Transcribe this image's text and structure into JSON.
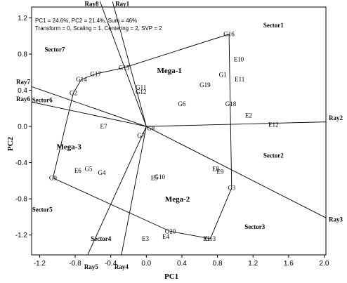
{
  "chart_data": {
    "type": "scatter",
    "title": "",
    "info_lines": [
      "PC1 = 24.6%, PC2 = 21.4%, Sum = 46%",
      "Transform = 0, Scaling = 1, Centering = 2, SVP = 2"
    ],
    "xlabel": "PC1",
    "ylabel": "PC2",
    "xlim": [
      -1.29,
      2.02
    ],
    "ylim": [
      -1.42,
      1.32
    ],
    "xticks": [
      -1.2,
      -0.8,
      -0.4,
      0.0,
      0.4,
      0.8,
      1.2,
      1.6,
      2.0
    ],
    "xtick_labels": [
      "-1.2",
      "-0.8",
      "-0.4",
      "0.0",
      "0.4",
      "0.8",
      "1.2",
      "1.6",
      "2.0"
    ],
    "yticks": [
      -1.2,
      -0.8,
      -0.4,
      0.0,
      0.4,
      0.8,
      1.2
    ],
    "ytick_labels": [
      "-1.2",
      "-0.8",
      "-0.4",
      "0.0",
      "0.4",
      "0.8",
      "1.2"
    ],
    "origin_label": "G8",
    "genotypes": [
      {
        "label": "G16",
        "x": 0.93,
        "y": 1.02
      },
      {
        "label": "G15",
        "x": -0.25,
        "y": 0.65
      },
      {
        "label": "G17",
        "x": -0.57,
        "y": 0.58
      },
      {
        "label": "G14",
        "x": -0.73,
        "y": 0.52
      },
      {
        "label": "G2",
        "x": -0.82,
        "y": 0.37
      },
      {
        "label": "G11",
        "x": -0.06,
        "y": 0.43
      },
      {
        "label": "G12",
        "x": -0.06,
        "y": 0.38
      },
      {
        "label": "G1",
        "x": 0.86,
        "y": 0.57
      },
      {
        "label": "G19",
        "x": 0.66,
        "y": 0.46
      },
      {
        "label": "G6",
        "x": 0.4,
        "y": 0.25
      },
      {
        "label": "G18",
        "x": 0.95,
        "y": 0.25
      },
      {
        "label": "G7",
        "x": -0.06,
        "y": -0.1
      },
      {
        "label": "G5",
        "x": -0.65,
        "y": -0.47
      },
      {
        "label": "G4",
        "x": -0.5,
        "y": -0.51
      },
      {
        "label": "G9",
        "x": -1.05,
        "y": -0.57
      },
      {
        "label": "G10",
        "x": 0.15,
        "y": -0.56
      },
      {
        "label": "G3",
        "x": 0.96,
        "y": -0.68
      },
      {
        "label": "G20",
        "x": 0.27,
        "y": -1.16
      },
      {
        "label": "G13",
        "x": 0.72,
        "y": -1.24
      }
    ],
    "environments": [
      {
        "label": "E10",
        "x": 1.04,
        "y": 0.74
      },
      {
        "label": "E11",
        "x": 1.05,
        "y": 0.52
      },
      {
        "label": "E2",
        "x": 1.15,
        "y": 0.12
      },
      {
        "label": "E12",
        "x": 1.43,
        "y": 0.02
      },
      {
        "label": "E7",
        "x": -0.48,
        "y": 0.0
      },
      {
        "label": "E6",
        "x": -0.77,
        "y": -0.49
      },
      {
        "label": "E5",
        "x": 0.09,
        "y": -0.57
      },
      {
        "label": "E8",
        "x": 0.78,
        "y": -0.47
      },
      {
        "label": "E9",
        "x": 0.83,
        "y": -0.5
      },
      {
        "label": "E4",
        "x": 0.22,
        "y": -1.22
      },
      {
        "label": "E3",
        "x": -0.01,
        "y": -1.24
      },
      {
        "label": "E1",
        "x": 0.68,
        "y": -1.24
      }
    ],
    "polygon_vertices": [
      "G16",
      "G3",
      "G13",
      "G20",
      "G9",
      "G2",
      "G14",
      "G17",
      "G15"
    ],
    "rays": [
      {
        "label": "Ray1",
        "x": -0.38,
        "y": 1.38
      },
      {
        "label": "Ray8",
        "x": -0.52,
        "y": 1.38
      },
      {
        "label": "Ray7",
        "x": -1.29,
        "y": 0.44
      },
      {
        "label": "Ray6",
        "x": -1.29,
        "y": 0.27
      },
      {
        "label": "Ray5",
        "x": -0.66,
        "y": -1.42
      },
      {
        "label": "Ray4",
        "x": -0.28,
        "y": -1.42
      },
      {
        "label": "Ray3",
        "x": 2.02,
        "y": -1.01
      },
      {
        "label": "Ray2",
        "x": 2.02,
        "y": 0.05
      }
    ],
    "sectors": [
      {
        "label": "Sector1",
        "x": 1.43,
        "y": 1.12
      },
      {
        "label": "Sector7",
        "x": -1.03,
        "y": 0.85
      },
      {
        "label": "Sector6",
        "x": -1.17,
        "y": 0.29
      },
      {
        "label": "Sector2",
        "x": 1.43,
        "y": -0.32
      },
      {
        "label": "Sector5",
        "x": -1.17,
        "y": -0.92
      },
      {
        "label": "Sector4",
        "x": -0.51,
        "y": -1.24
      },
      {
        "label": "Sector3",
        "x": 1.22,
        "y": -1.11
      }
    ],
    "mega_labels": [
      {
        "label": "Mega-1",
        "x": 0.26,
        "y": 0.62
      },
      {
        "label": "Mega-3",
        "x": -0.87,
        "y": -0.22
      },
      {
        "label": "Mega-2",
        "x": 0.35,
        "y": -0.8
      }
    ],
    "grid": false
  }
}
